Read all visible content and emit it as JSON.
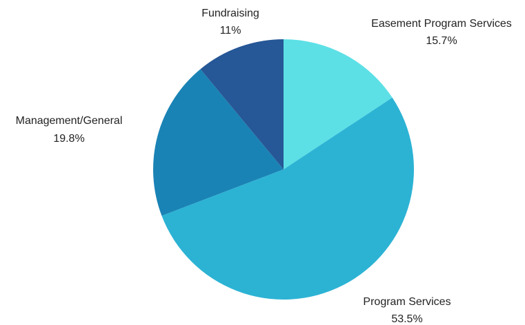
{
  "chart_data": {
    "type": "pie",
    "slices": [
      {
        "label": "Easement Program Services",
        "value": 15.7,
        "value_label": "15.7%",
        "color": "#5CE0E6"
      },
      {
        "label": "Program Services",
        "value": 53.5,
        "value_label": "53.5%",
        "color": "#2CB3D4"
      },
      {
        "label": "Management/General",
        "value": 19.8,
        "value_label": "19.8%",
        "color": "#1A83B5"
      },
      {
        "label": "Fundraising",
        "value": 11,
        "value_label": "11%",
        "color": "#265796"
      }
    ],
    "start": "12 o'clock",
    "direction": "clockwise",
    "legend": "none"
  }
}
